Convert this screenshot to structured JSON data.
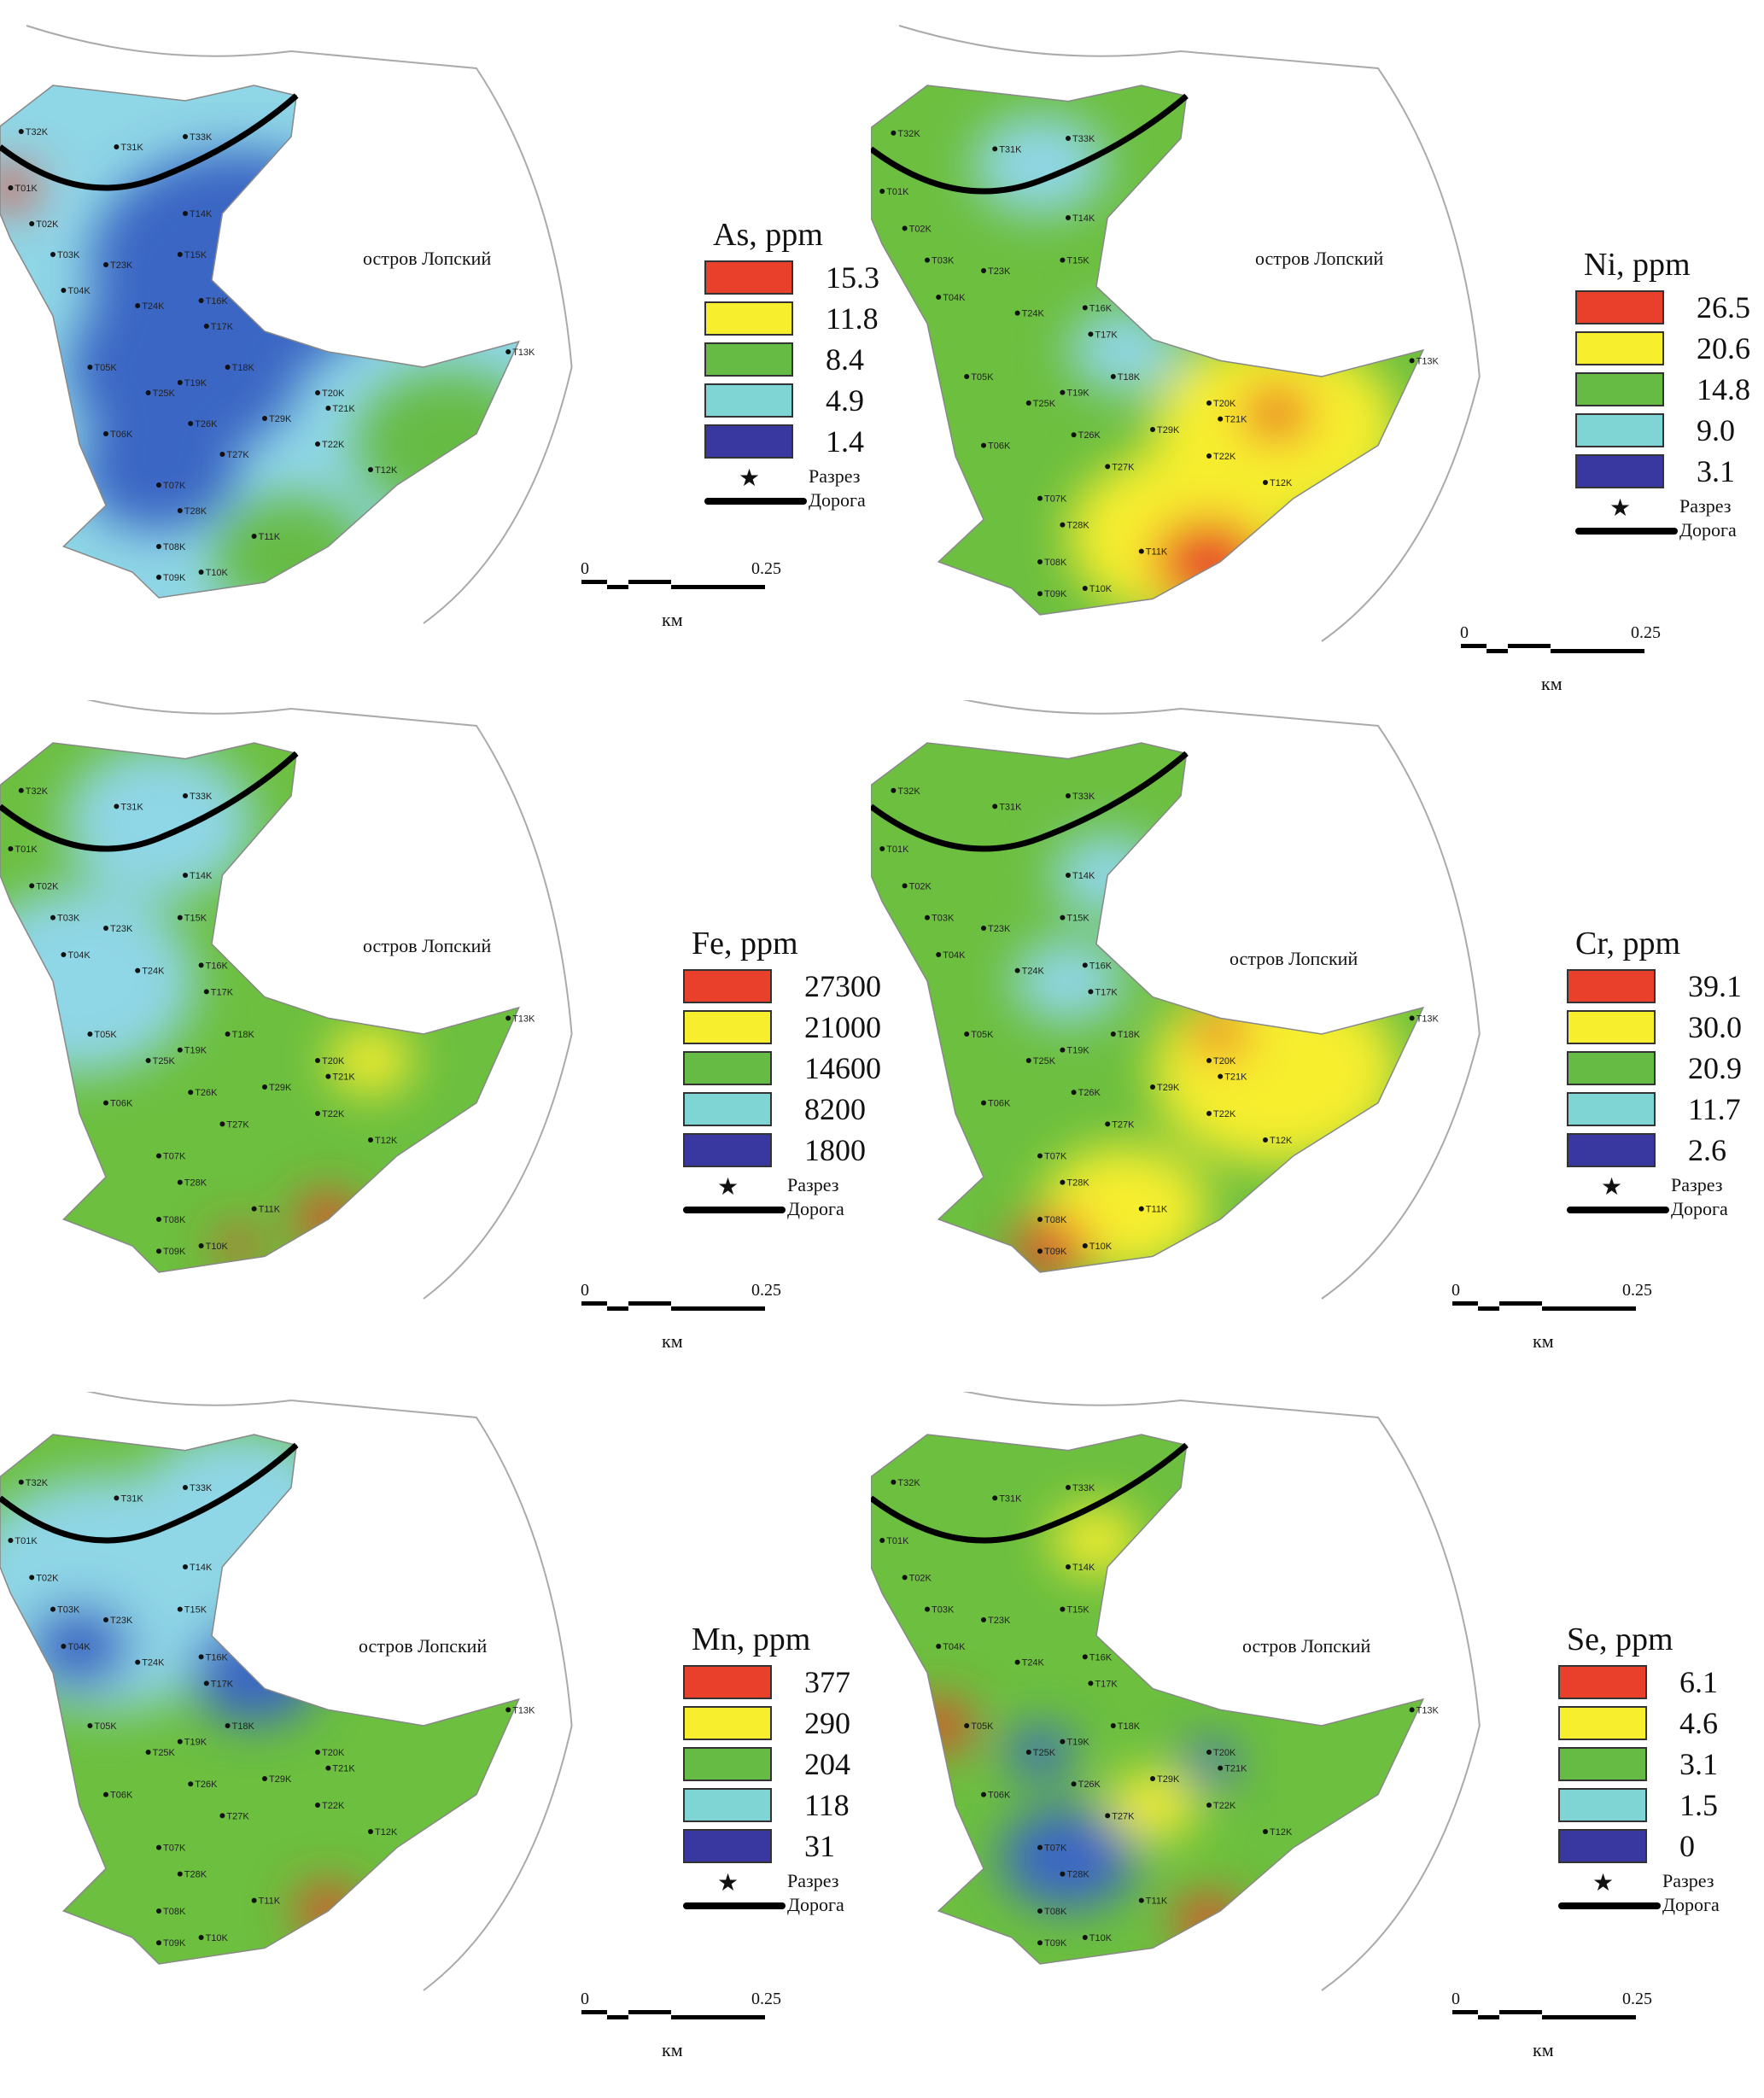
{
  "island_label": "остров Лопский",
  "legend_symbols": {
    "cut": "Разрез",
    "road": "Дорога"
  },
  "scale": {
    "zero": "0",
    "max": "0.25",
    "unit": "км"
  },
  "colors": {
    "red": "#e8402b",
    "yellow": "#f7ee2e",
    "green": "#66bb44",
    "cyan": "#7fd4d4",
    "navy": "#3838a0",
    "mapGreen": "#6cbf3f",
    "mapCyan": "#8fd6e6",
    "mapBlue": "#3a66c4"
  },
  "sample_points": [
    "T01K",
    "T02K",
    "T03K",
    "T04K",
    "T05K",
    "T06K",
    "T07K",
    "T08K",
    "T09K",
    "T10K",
    "T11K",
    "T12K",
    "T13K",
    "T14K",
    "T15K",
    "T16K",
    "T17K",
    "T18K",
    "T19K",
    "T20K",
    "T21K",
    "T22K",
    "T23K",
    "T24K",
    "T25K",
    "T26K",
    "T27K",
    "T28K",
    "T29K",
    "T31K",
    "T32K",
    "T33K"
  ],
  "panels": [
    {
      "id": "as",
      "title": "As, ppm",
      "values": [
        "15.3",
        "11.8",
        "8.4",
        "4.9",
        "1.4"
      ],
      "base": "mapCyan",
      "blobs": [
        [
          "blue",
          0.45,
          0.35,
          0.28
        ],
        [
          "blue",
          0.35,
          0.55,
          0.22
        ],
        [
          "blue",
          0.3,
          0.75,
          0.15
        ],
        [
          "green",
          0.85,
          0.7,
          0.18
        ],
        [
          "green",
          0.55,
          0.92,
          0.15
        ],
        [
          "red",
          0.02,
          0.2,
          0.05
        ]
      ]
    },
    {
      "id": "ni",
      "title": "Ni, ppm",
      "values": [
        "26.5",
        "20.6",
        "14.8",
        "9.0",
        "3.1"
      ],
      "base": "mapGreen",
      "blobs": [
        [
          "yellow",
          0.72,
          0.65,
          0.22
        ],
        [
          "yellow",
          0.55,
          0.85,
          0.2
        ],
        [
          "red",
          0.6,
          0.9,
          0.1
        ],
        [
          "red",
          0.72,
          0.62,
          0.06
        ],
        [
          "cyan",
          0.45,
          0.5,
          0.1
        ],
        [
          "cyan",
          0.3,
          0.15,
          0.12
        ]
      ]
    },
    {
      "id": "fe",
      "title": "Fe, ppm",
      "values": [
        "27300",
        "21000",
        "14600",
        "8200",
        "1800"
      ],
      "base": "mapGreen",
      "blobs": [
        [
          "cyan",
          0.15,
          0.45,
          0.22
        ],
        [
          "cyan",
          0.3,
          0.15,
          0.18
        ],
        [
          "red",
          0.62,
          0.9,
          0.06
        ],
        [
          "red",
          0.45,
          0.95,
          0.04
        ],
        [
          "yellow",
          0.7,
          0.6,
          0.08
        ]
      ]
    },
    {
      "id": "cr",
      "title": "Cr, ppm",
      "values": [
        "39.1",
        "30.0",
        "20.9",
        "11.7",
        "2.6"
      ],
      "base": "mapGreen",
      "blobs": [
        [
          "yellow",
          0.72,
          0.62,
          0.22
        ],
        [
          "yellow",
          0.45,
          0.88,
          0.15
        ],
        [
          "red",
          0.32,
          0.95,
          0.07
        ],
        [
          "red",
          0.62,
          0.55,
          0.05
        ],
        [
          "cyan",
          0.42,
          0.25,
          0.1
        ],
        [
          "cyan",
          0.35,
          0.45,
          0.1
        ]
      ]
    },
    {
      "id": "mn",
      "title": "Mn, ppm",
      "values": [
        "377",
        "290",
        "204",
        "118",
        "31"
      ],
      "base": "mapGreen",
      "blobs": [
        [
          "cyan",
          0.2,
          0.3,
          0.28
        ],
        [
          "cyan",
          0.45,
          0.15,
          0.2
        ],
        [
          "blue",
          0.48,
          0.45,
          0.12
        ],
        [
          "blue",
          0.15,
          0.4,
          0.1
        ],
        [
          "red",
          0.62,
          0.9,
          0.06
        ]
      ]
    },
    {
      "id": "se",
      "title": "Se, ppm",
      "values": [
        "6.1",
        "4.6",
        "3.1",
        "1.5",
        "0"
      ],
      "base": "mapGreen",
      "blobs": [
        [
          "yellow",
          0.4,
          0.2,
          0.08
        ],
        [
          "red",
          0.12,
          0.55,
          0.06
        ],
        [
          "red",
          0.6,
          0.92,
          0.06
        ],
        [
          "blue",
          0.35,
          0.8,
          0.12
        ],
        [
          "blue",
          0.3,
          0.6,
          0.06
        ],
        [
          "blue",
          0.6,
          0.62,
          0.05
        ],
        [
          "yellow",
          0.5,
          0.7,
          0.08
        ]
      ]
    }
  ]
}
